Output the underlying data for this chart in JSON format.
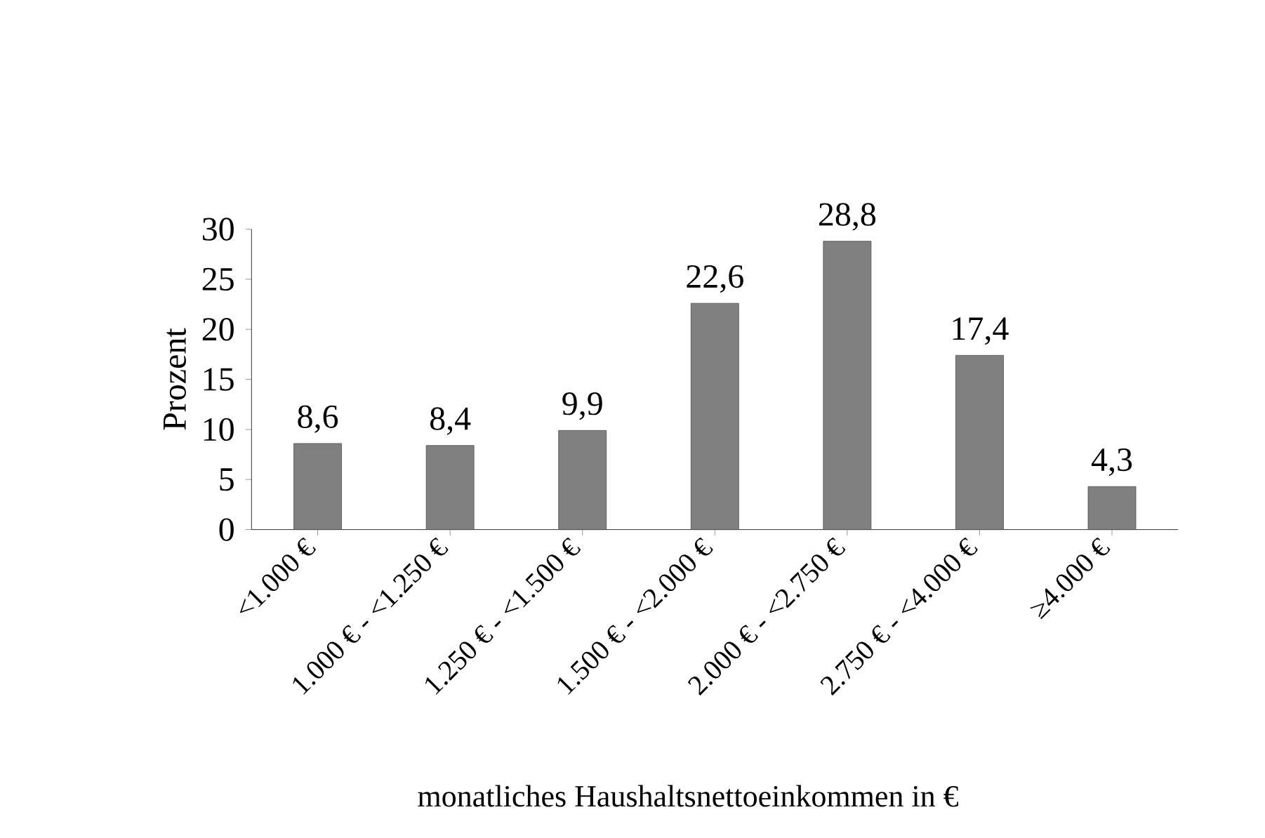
{
  "chart_data": {
    "type": "bar",
    "xlabel": "monatliches Haushaltsnettoeinkommen in €",
    "ylabel": "Prozent",
    "categories": [
      "<1.000 €",
      "1.000 € - <1.250 €",
      "1.250 € - <1.500 €",
      "1.500 € - <2.000 €",
      "2.000 € - <2.750 €",
      "2.750 € - <4.000 €",
      "≥4.000 €"
    ],
    "values": [
      8.6,
      8.4,
      9.9,
      22.6,
      28.8,
      17.4,
      4.3
    ],
    "value_labels": [
      "8,6",
      "8,4",
      "9,9",
      "22,6",
      "28,8",
      "17,4",
      "4,3"
    ],
    "color": "#808080",
    "ylim": [
      0,
      30
    ],
    "yticks": [
      0,
      5,
      10,
      15,
      20,
      25,
      30
    ],
    "grid": false
  }
}
